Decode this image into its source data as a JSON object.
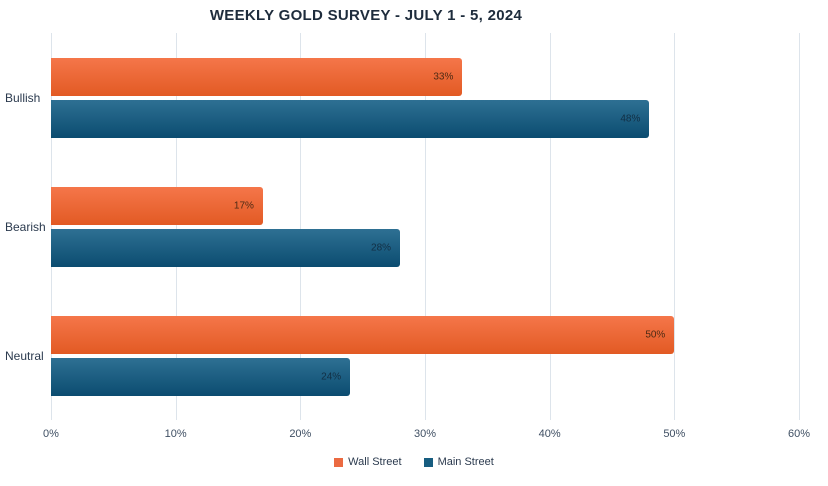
{
  "title": "WEEKLY GOLD SURVEY - JULY 1 - 5, 2024",
  "chart_data": {
    "type": "bar",
    "orientation": "horizontal",
    "title": "WEEKLY GOLD SURVEY - JULY 1 - 5, 2024",
    "categories": [
      "Bullish",
      "Bearish",
      "Neutral"
    ],
    "series": [
      {
        "name": "Wall Street",
        "values": [
          33,
          17,
          50
        ],
        "color": "#eb6a41",
        "color_top": "#f5764a",
        "color_bottom": "#e25a24",
        "label_color": "#4d2a14"
      },
      {
        "name": "Main Street",
        "values": [
          48,
          28,
          24
        ],
        "color": "#175d80",
        "color_top": "#2e7093",
        "color_bottom": "#0b4c70",
        "label_color": "#122f44"
      }
    ],
    "value_suffix": "%",
    "x_ticks": [
      "0%",
      "10%",
      "20%",
      "30%",
      "40%",
      "50%",
      "60%"
    ],
    "xlim": [
      0,
      60
    ],
    "xlabel": "",
    "ylabel": "",
    "grid": true,
    "legend_position": "bottom",
    "background": "#ffffff",
    "gridline_color": "#dde4eb"
  }
}
